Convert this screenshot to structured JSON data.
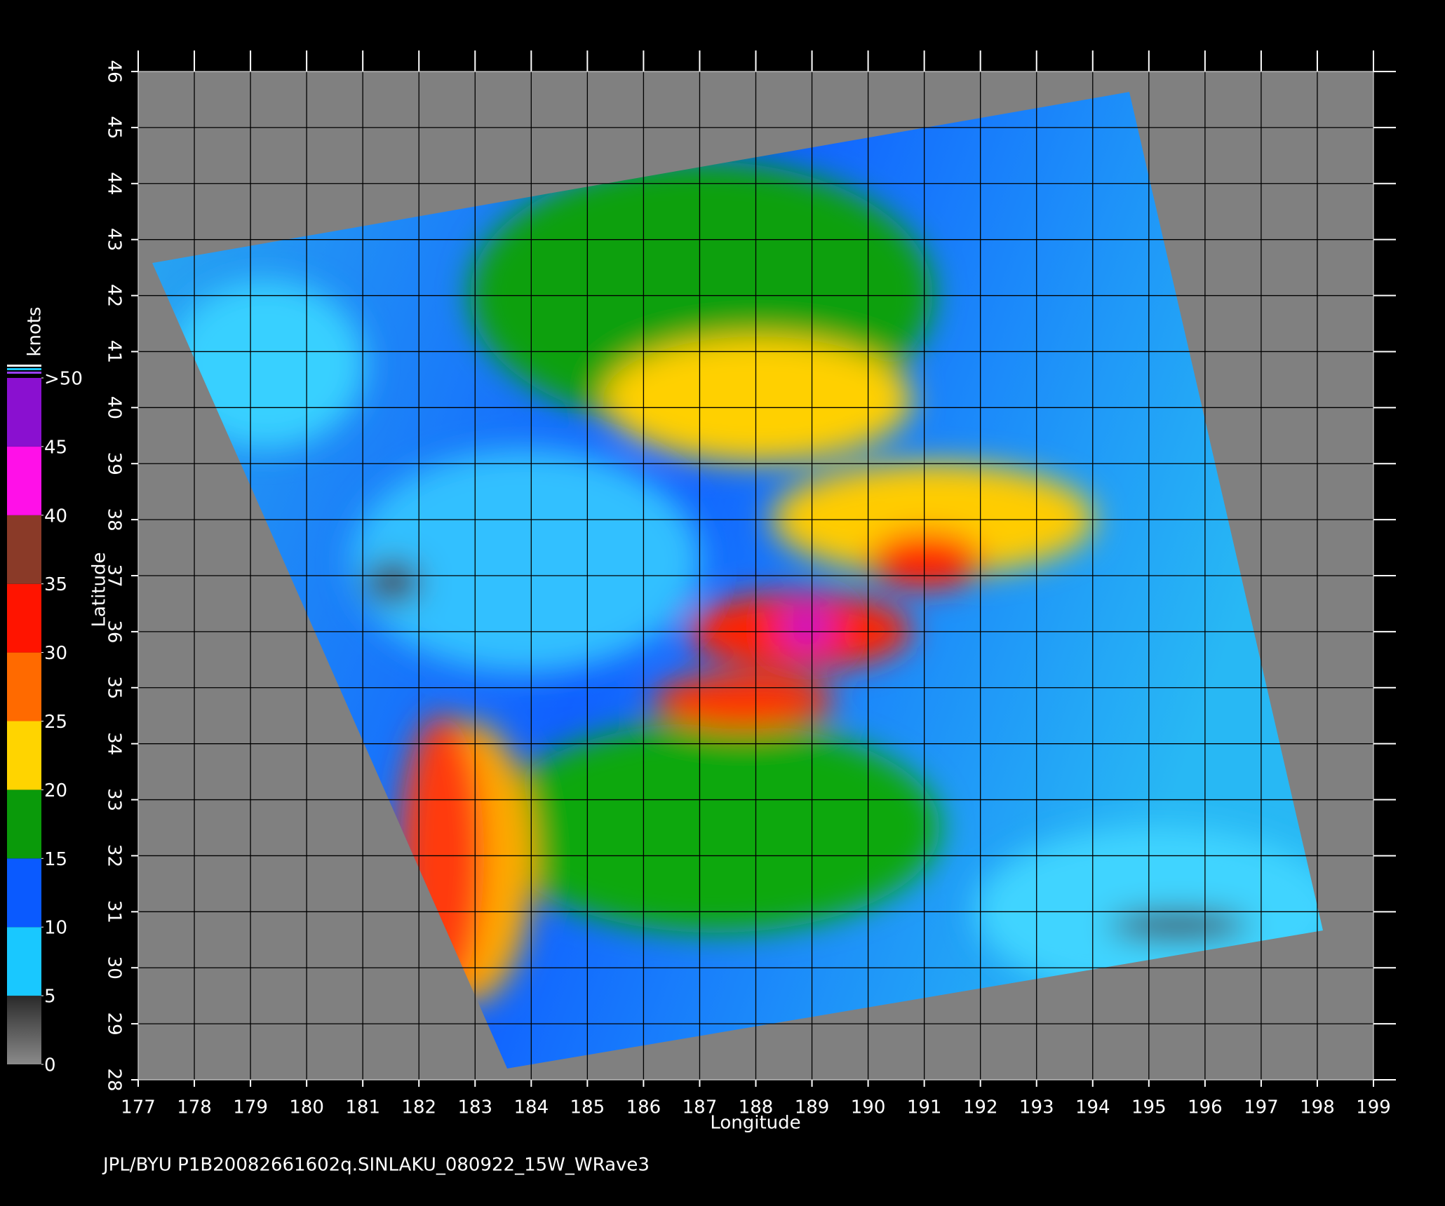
{
  "chart_data": {
    "type": "map",
    "xlabel": "Longitude",
    "ylabel": "Latitude",
    "xlim": [
      177,
      199
    ],
    "xticks": [
      177,
      178,
      179,
      180,
      181,
      182,
      183,
      184,
      185,
      186,
      187,
      188,
      189,
      190,
      191,
      192,
      193,
      194,
      195,
      196,
      197,
      198,
      199
    ],
    "ylim": [
      28,
      46
    ],
    "yticks": [
      28,
      29,
      30,
      31,
      32,
      33,
      34,
      35,
      36,
      37,
      38,
      39,
      40,
      41,
      42,
      43,
      44,
      45,
      46
    ],
    "grid": true,
    "colorbar": {
      "label": "knots",
      "lim": [
        0,
        50
      ],
      "ticks": [
        0,
        5,
        10,
        15,
        20,
        25,
        30,
        35,
        40,
        45,
        {
          "value": 50,
          "label": ">50"
        }
      ],
      "colors": [
        "#6e6e6e",
        "#19c8ff",
        "#0a5aff",
        "#0a9a0a",
        "#ffd400",
        "#ff6a00",
        "#ff1400",
        "#8a3a28",
        "#ff10e8",
        "#8a10d0"
      ]
    },
    "footer": "JPL/BYU  P1B20082661602q.SINLAKU_080922_15W_WRave3"
  }
}
